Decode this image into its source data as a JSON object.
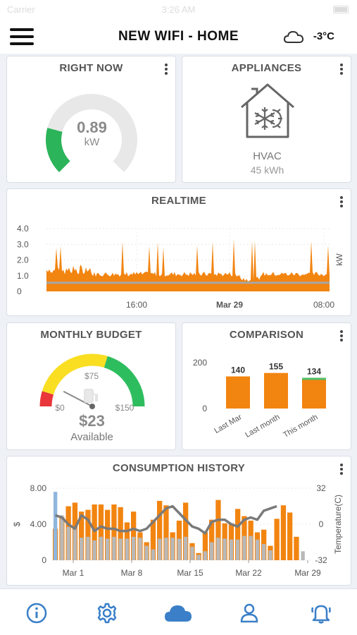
{
  "status_bar": {
    "carrier": "Carrier",
    "time": "3:26 AM"
  },
  "header": {
    "title": "NEW WIFI - HOME",
    "temperature": "-3°C",
    "weather_icon": "cloud-icon"
  },
  "right_now": {
    "title": "RIGHT NOW",
    "value": "0.89",
    "unit": "kW",
    "gauge_max": 4.0,
    "gauge_value": 0.89
  },
  "appliances": {
    "title": "APPLIANCES",
    "name": "HVAC",
    "energy": "45 kWh",
    "icon": "house-snowflake-sun-icon"
  },
  "realtime": {
    "title": "REALTIME",
    "y_ticks": [
      "4.0",
      "3.0",
      "2.0",
      "1.0",
      "0"
    ],
    "y_unit": "kW",
    "x_ticks": [
      "16:00",
      "Mar 29",
      "08:00"
    ],
    "baseline_kw": 0.55,
    "typical_kw": 1.1
  },
  "monthly_budget": {
    "title": "MONTHLY BUDGET",
    "labels": {
      "min": "$0",
      "mid": "$75",
      "max": "$150"
    },
    "amount": "$23",
    "caption": "Available",
    "spent": 23,
    "max": 150
  },
  "comparison": {
    "title": "COMPARISON",
    "y_ticks": [
      "200",
      "0"
    ],
    "categories": [
      "Last Mar",
      "Last month",
      "This month"
    ],
    "values": [
      140,
      155,
      134
    ],
    "value_labels": [
      "140",
      "155",
      "134"
    ]
  },
  "consumption_history": {
    "title": "CONSUMPTION HISTORY",
    "y_left_ticks": [
      "8.00",
      "4.00",
      "0"
    ],
    "y_left_unit": "$",
    "y_right_ticks": [
      "32",
      "0",
      "-32"
    ],
    "y_right_label": "Temperature(C)",
    "x_ticks": [
      "Mar 1",
      "Mar 8",
      "Mar 15",
      "Mar 22",
      "Mar 29"
    ]
  },
  "chart_data": [
    {
      "type": "bar",
      "title": "COMPARISON",
      "categories": [
        "Last Mar",
        "Last month",
        "This month"
      ],
      "values": [
        140,
        155,
        134
      ],
      "ylim": [
        0,
        200
      ]
    },
    {
      "type": "bar",
      "title": "CONSUMPTION HISTORY",
      "ylabel": "$",
      "ylim": [
        0,
        8
      ],
      "y2label": "Temperature(C)",
      "y2lim": [
        -32,
        32
      ],
      "x_ticks": [
        "Mar 1",
        "Mar 8",
        "Mar 15",
        "Mar 22",
        "Mar 29"
      ],
      "series": [
        {
          "name": "",
          "values": [
            3.5,
            4.8,
            6.0,
            6.4,
            5.4,
            5.6,
            6.2,
            6.2,
            5.6,
            6.2,
            5.9,
            4.2,
            5.4,
            3.1,
            2.0,
            4.5,
            6.6,
            6.1,
            3.1,
            4.4,
            6.4,
            1.9,
            0.8,
            3.1,
            4.5,
            6.7,
            4.1,
            4.1,
            5.7,
            4.9,
            4.4,
            3.1,
            3.4,
            1.6,
            4.6,
            6.1,
            5.3,
            2.6,
            0.0,
            0.0
          ]
        },
        {
          "name": "",
          "values": [
            7.6,
            5.0,
            3.7,
            3.7,
            2.5,
            2.6,
            2.2,
            2.6,
            2.4,
            2.6,
            2.4,
            2.4,
            2.6,
            2.5,
            1.6,
            1.2,
            2.4,
            2.5,
            2.5,
            2.4,
            2.6,
            1.5,
            0.6,
            1.0,
            2.0,
            2.5,
            2.4,
            2.3,
            2.3,
            2.7,
            2.7,
            2.3,
            1.8,
            1.1,
            0.0,
            0.0,
            0.0,
            0.0,
            1.0,
            0.0
          ]
        },
        {
          "name": "",
          "values": [
            8,
            6,
            0,
            -4,
            8,
            4,
            -6,
            -2,
            -4,
            -4,
            -6,
            -6,
            -4,
            -6,
            -4,
            2,
            8,
            14,
            16,
            10,
            4,
            -2,
            -4,
            -8,
            2,
            4,
            4,
            0,
            -2,
            4,
            6,
            4,
            12,
            14,
            16,
            null,
            null,
            null,
            null,
            null
          ]
        }
      ]
    }
  ]
}
